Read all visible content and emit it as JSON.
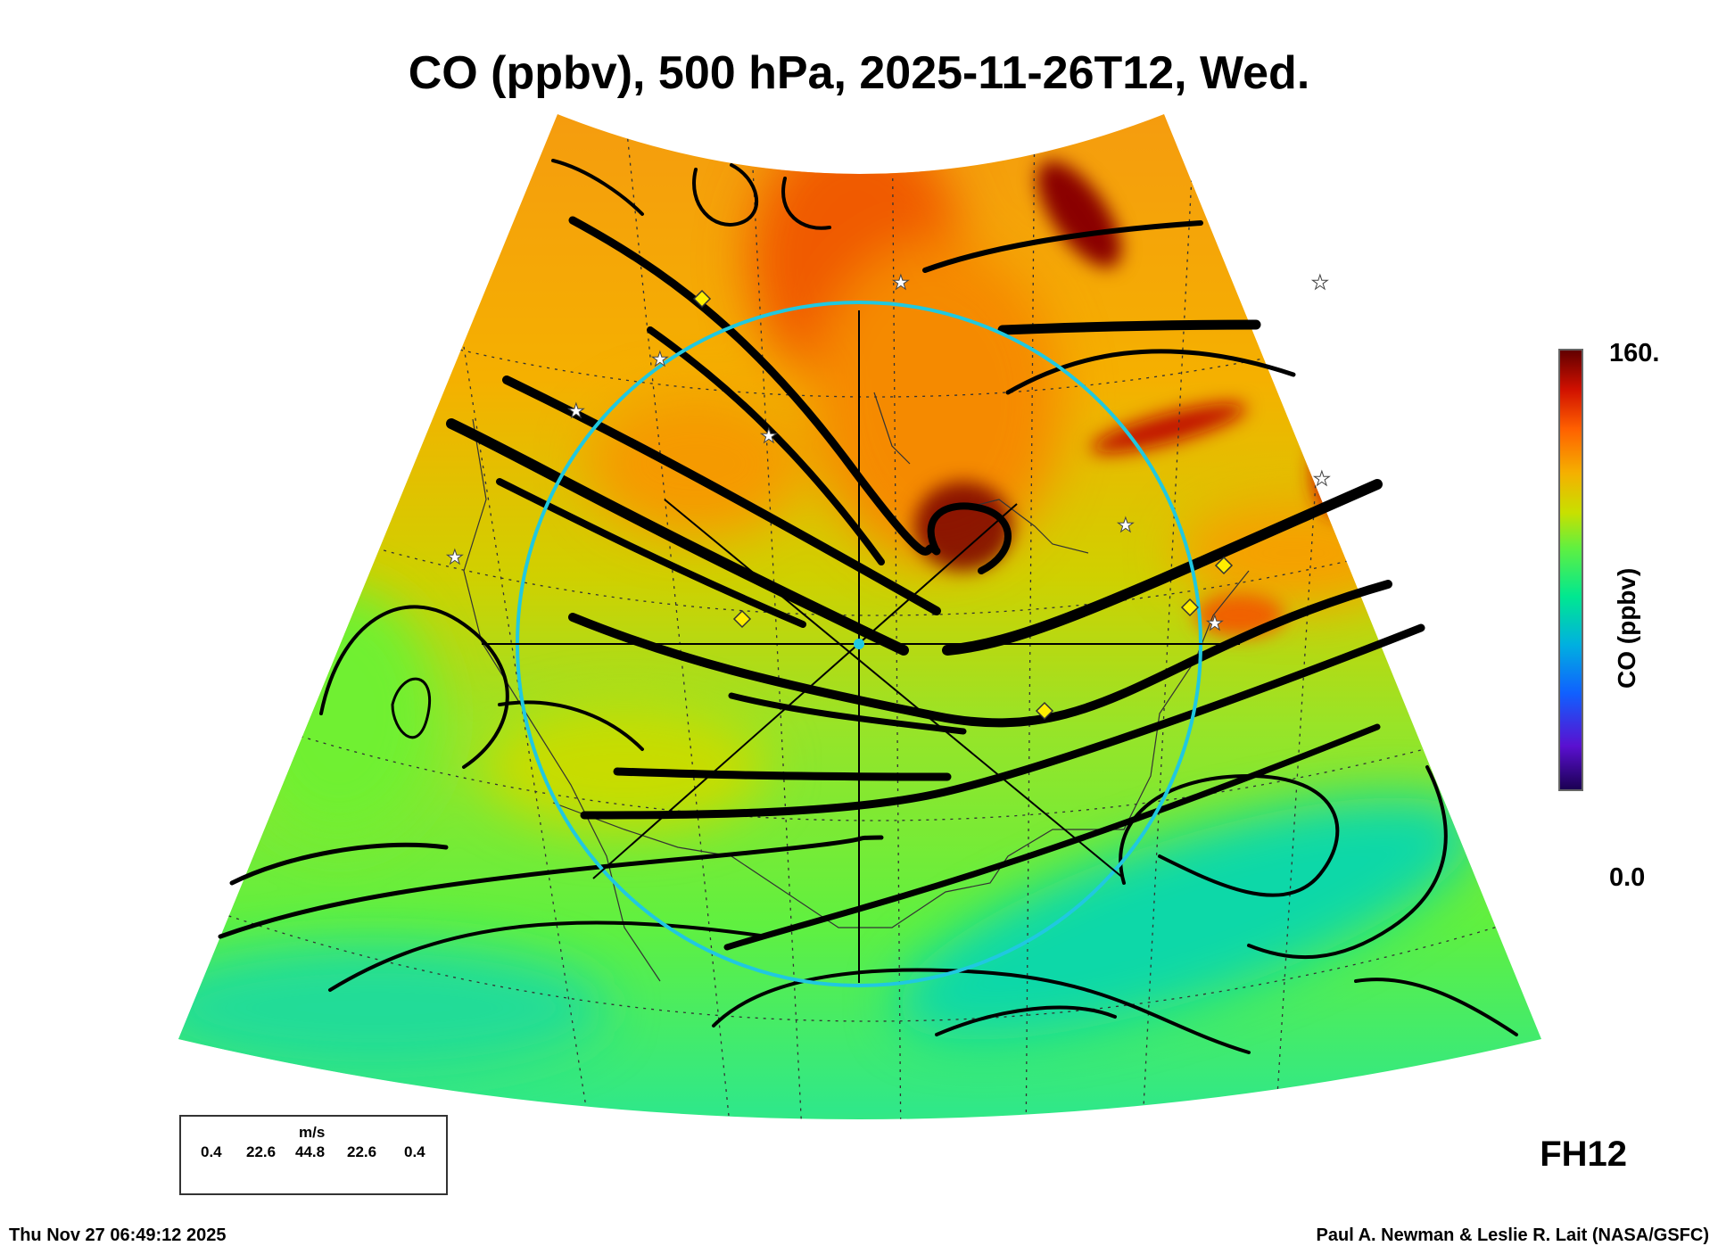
{
  "title": "CO (ppbv), 500 hPa, 2025-11-26T12, Wed.",
  "colorbar": {
    "label": "CO (ppbv)",
    "max_label": "160.",
    "min_label": "0.0",
    "min": 0,
    "max": 160,
    "colors": [
      "#1a0050",
      "#5a10d0",
      "#1060ff",
      "#00b0e0",
      "#00e890",
      "#60f040",
      "#c8e000",
      "#f5b000",
      "#ff6000",
      "#d01000",
      "#600000"
    ]
  },
  "legend": {
    "units": "m/s",
    "speeds": [
      "0.4",
      "22.6",
      "44.8",
      "22.6",
      "0.4"
    ]
  },
  "forecast_hour": "FH12",
  "timestamp": "Thu Nov 27 06:49:12 2025",
  "credit": "Paul A. Newman & Leslie R. Lait (NASA/GSFC)",
  "accent": {
    "circle": "#20c8e0",
    "diamond": "#ffee00"
  }
}
